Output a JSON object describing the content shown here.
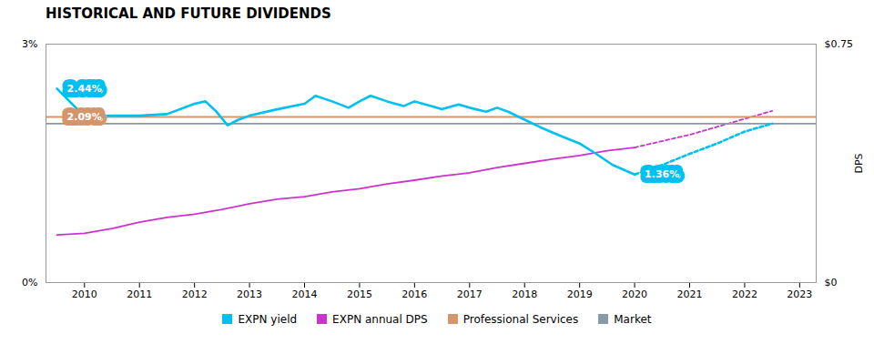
{
  "chart_data": {
    "type": "line",
    "title": "HISTORICAL AND FUTURE DIVIDENDS",
    "xlim": [
      2009.3,
      2023.3
    ],
    "xticks": [
      2010,
      2011,
      2012,
      2013,
      2014,
      2015,
      2016,
      2017,
      2018,
      2019,
      2020,
      2021,
      2022,
      2023
    ],
    "ylim": [
      0,
      0.03
    ],
    "yticks": [
      {
        "value": 0,
        "label": "0%"
      },
      {
        "value": 0.03,
        "label": "3%"
      }
    ],
    "y2lim": [
      0,
      0.75
    ],
    "y2ticks": [
      {
        "value": 0,
        "label": "$0"
      },
      {
        "value": 0.75,
        "label": "$0.75"
      }
    ],
    "y2label": "DPS",
    "grid": false,
    "legend": "bottom",
    "series": [
      {
        "name": "EXPN yield",
        "color": "#00c0f0",
        "line_style": "solid",
        "x": [
          2009.5,
          2010.0,
          2010.5,
          2011.0,
          2011.5,
          2012.0,
          2012.2,
          2012.4,
          2012.6,
          2012.8,
          2013.0,
          2013.5,
          2014.0,
          2014.2,
          2014.5,
          2014.8,
          2015.0,
          2015.2,
          2015.5,
          2015.8,
          2016.0,
          2016.3,
          2016.5,
          2016.8,
          2017.0,
          2017.3,
          2017.5,
          2017.7,
          2018.0,
          2018.3,
          2018.6,
          2019.0,
          2019.3,
          2019.6,
          2020.0
        ],
        "values": [
          0.0244,
          0.0209,
          0.021,
          0.021,
          0.0212,
          0.0225,
          0.0228,
          0.0215,
          0.0198,
          0.0205,
          0.021,
          0.0218,
          0.0225,
          0.0235,
          0.0228,
          0.022,
          0.0228,
          0.0235,
          0.0228,
          0.0222,
          0.0228,
          0.0222,
          0.0218,
          0.0224,
          0.022,
          0.0215,
          0.022,
          0.0215,
          0.0205,
          0.0195,
          0.0186,
          0.0175,
          0.0162,
          0.0148,
          0.0136
        ]
      },
      {
        "name": "EXPN yield",
        "color": "#00c0f0",
        "line_style": "dashed",
        "x": [
          2020.0,
          2020.5,
          2021.0,
          2021.5,
          2022.0,
          2022.5
        ],
        "values": [
          0.0136,
          0.0148,
          0.0162,
          0.0175,
          0.019,
          0.02
        ]
      },
      {
        "name": "EXPN annual DPS",
        "color": "#cc33cc",
        "line_style": "solid",
        "axis": "y2",
        "x": [
          2009.5,
          2010.0,
          2010.5,
          2011.0,
          2011.5,
          2012.0,
          2012.5,
          2013.0,
          2013.5,
          2014.0,
          2014.5,
          2015.0,
          2015.5,
          2016.0,
          2016.5,
          2017.0,
          2017.5,
          2018.0,
          2018.5,
          2019.0,
          2019.5,
          2020.0
        ],
        "values": [
          0.15,
          0.155,
          0.17,
          0.19,
          0.205,
          0.215,
          0.23,
          0.248,
          0.262,
          0.27,
          0.285,
          0.295,
          0.31,
          0.322,
          0.335,
          0.345,
          0.362,
          0.375,
          0.388,
          0.4,
          0.415,
          0.425
        ]
      },
      {
        "name": "EXPN annual DPS",
        "color": "#cc33cc",
        "line_style": "dashed",
        "axis": "y2",
        "x": [
          2020.0,
          2020.5,
          2021.0,
          2021.5,
          2022.0,
          2022.5
        ],
        "values": [
          0.425,
          0.445,
          0.465,
          0.49,
          0.515,
          0.54
        ]
      },
      {
        "name": "Professional Services",
        "color": "#d4956a",
        "line_style": "solid",
        "axis": "y2",
        "x": [
          2009.3,
          2023.3
        ],
        "values": [
          0.521,
          0.521
        ]
      },
      {
        "name": "Market",
        "color": "#8899aa",
        "line_style": "solid",
        "axis": "y2",
        "x": [
          2009.3,
          2023.3
        ],
        "values": [
          0.5,
          0.5
        ]
      }
    ],
    "annotations": [
      {
        "text": "2.44%",
        "x": 2009.55,
        "y": 0.0244,
        "color": "#00c0f0"
      },
      {
        "text": "2.09%",
        "x": 2009.55,
        "y": 0.0209,
        "color": "#d4956a"
      },
      {
        "text": "1.36%",
        "x": 2020.05,
        "y": 0.0136,
        "color": "#00c0f0"
      }
    ]
  }
}
